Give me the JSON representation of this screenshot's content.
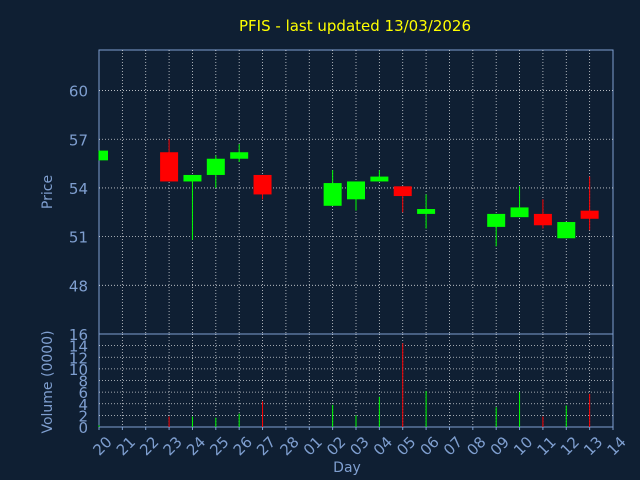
{
  "title": "PFIS - last updated 13/03/2026",
  "colors": {
    "background": "#0f1f33",
    "title": "#ffff00",
    "axis_text": "#7f9fd0",
    "grid": "#ffffff",
    "up": "#00ff00",
    "down": "#ff0000",
    "volume_tick": "#ffffff"
  },
  "chart_data": [
    {
      "type": "candlestick",
      "title": "PFIS - last updated 13/03/2026",
      "ylabel": "Price",
      "xlabel": "Day",
      "ylim": [
        45,
        62.5
      ],
      "yticks": [
        48,
        51,
        54,
        57,
        60
      ],
      "grid": true,
      "x_labels": [
        "20",
        "21",
        "22",
        "23",
        "24",
        "25",
        "26",
        "27",
        "28",
        "01",
        "02",
        "03",
        "04",
        "05",
        "06",
        "07",
        "08",
        "09",
        "10",
        "11",
        "12",
        "13",
        "14"
      ],
      "candles": [
        {
          "day": "20",
          "open": 55.7,
          "close": 56.3,
          "high": 56.3,
          "low": 55.7
        },
        {
          "day": "23",
          "open": 56.2,
          "close": 54.4,
          "high": 57.0,
          "low": 54.4
        },
        {
          "day": "24",
          "open": 54.4,
          "close": 54.8,
          "high": 54.8,
          "low": 50.8
        },
        {
          "day": "25",
          "open": 54.8,
          "close": 55.8,
          "high": 56.0,
          "low": 54.0
        },
        {
          "day": "26",
          "open": 55.8,
          "close": 56.2,
          "high": 56.7,
          "low": 55.6
        },
        {
          "day": "27",
          "open": 54.8,
          "close": 53.6,
          "high": 54.8,
          "low": 53.3
        },
        {
          "day": "02",
          "open": 52.9,
          "close": 54.3,
          "high": 55.1,
          "low": 52.9
        },
        {
          "day": "03",
          "open": 53.3,
          "close": 54.4,
          "high": 54.4,
          "low": 52.6
        },
        {
          "day": "04",
          "open": 54.4,
          "close": 54.7,
          "high": 55.1,
          "low": 54.4
        },
        {
          "day": "05",
          "open": 54.1,
          "close": 53.5,
          "high": 54.1,
          "low": 52.5
        },
        {
          "day": "06",
          "open": 52.4,
          "close": 52.7,
          "high": 53.6,
          "low": 51.5
        },
        {
          "day": "09",
          "open": 51.6,
          "close": 52.4,
          "high": 52.4,
          "low": 50.4
        },
        {
          "day": "10",
          "open": 52.2,
          "close": 52.8,
          "high": 54.1,
          "low": 52.2
        },
        {
          "day": "11",
          "open": 52.4,
          "close": 51.7,
          "high": 53.3,
          "low": 51.5
        },
        {
          "day": "12",
          "open": 50.9,
          "close": 51.9,
          "high": 51.9,
          "low": 50.9
        },
        {
          "day": "13",
          "open": 52.6,
          "close": 52.1,
          "high": 54.7,
          "low": 51.4
        }
      ]
    },
    {
      "type": "bar",
      "ylabel": "Volume (0000)",
      "ylim": [
        0,
        16
      ],
      "yticks": [
        0,
        2,
        4,
        6,
        8,
        10,
        12,
        14,
        16
      ],
      "grid": true,
      "bars": [
        {
          "day": "20",
          "value": 0.3,
          "direction": "up"
        },
        {
          "day": "23",
          "value": 1.8,
          "direction": "down"
        },
        {
          "day": "24",
          "value": 1.8,
          "direction": "up"
        },
        {
          "day": "25",
          "value": 1.6,
          "direction": "up"
        },
        {
          "day": "26",
          "value": 2.3,
          "direction": "up"
        },
        {
          "day": "27",
          "value": 4.4,
          "direction": "down"
        },
        {
          "day": "02",
          "value": 3.8,
          "direction": "up"
        },
        {
          "day": "03",
          "value": 2.0,
          "direction": "up"
        },
        {
          "day": "04",
          "value": 5.2,
          "direction": "up"
        },
        {
          "day": "05",
          "value": 14.4,
          "direction": "down"
        },
        {
          "day": "06",
          "value": 6.2,
          "direction": "up"
        },
        {
          "day": "09",
          "value": 3.4,
          "direction": "up"
        },
        {
          "day": "10",
          "value": 6.0,
          "direction": "up"
        },
        {
          "day": "11",
          "value": 1.8,
          "direction": "down"
        },
        {
          "day": "12",
          "value": 3.7,
          "direction": "up"
        },
        {
          "day": "13",
          "value": 5.7,
          "direction": "down"
        }
      ]
    }
  ]
}
